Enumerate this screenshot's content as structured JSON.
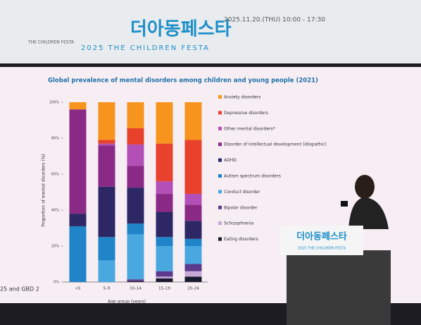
{
  "banner": {
    "title": "더아동페스타",
    "subtitle": "2025 THE CHILDREN FESTA",
    "date": "2025.11.20.(THU) 10:00 - 17:30",
    "logo": "THE CHILDREN FESTA"
  },
  "podium": {
    "title": "더아동페스타",
    "subtitle": "2025 THE CHILDREN FESTA"
  },
  "footnote": "25 and GBD 2",
  "chart_data": {
    "type": "stacked-bar",
    "title": "Global prevalence of mental disorders among children and young people (2021)",
    "x_label": "Age group (years)",
    "y_label": "Proportion of mental disorders (%)",
    "categories": [
      "<5",
      "5–9",
      "10–14",
      "15–19",
      "20–24"
    ],
    "ylim": [
      0,
      100
    ],
    "yticks": [
      {
        "value": 0,
        "label": "0%"
      },
      {
        "value": 20,
        "label": "20%"
      },
      {
        "value": 40,
        "label": "40%"
      },
      {
        "value": 60,
        "label": "60%"
      },
      {
        "value": 80,
        "label": "80%"
      },
      {
        "value": 100,
        "label": "100%"
      }
    ],
    "series": [
      {
        "name": "Anxiety disorders",
        "color": "#f7941d",
        "values": [
          4,
          21,
          14.5,
          23,
          21
        ]
      },
      {
        "name": "Depressive disorders",
        "color": "#e8412c",
        "values": [
          0,
          2,
          9,
          21,
          30
        ]
      },
      {
        "name": "Other mental disorders*",
        "color": "#b44fb8",
        "values": [
          0,
          1,
          12,
          7,
          6
        ]
      },
      {
        "name": "Disorder of intellectual development (idiopathic)",
        "color": "#8a2a86",
        "values": [
          58,
          23,
          12,
          10,
          9
        ]
      },
      {
        "name": "ADHD",
        "color": "#2d2766",
        "values": [
          7,
          28,
          20,
          14,
          10
        ]
      },
      {
        "name": "Autism spectrum disorders",
        "color": "#1f84c8",
        "values": [
          31,
          13,
          6,
          5,
          4
        ]
      },
      {
        "name": "Conduct disorder",
        "color": "#4aa8e0",
        "values": [
          0,
          12,
          25,
          14,
          10
        ]
      },
      {
        "name": "Bipolar disorder",
        "color": "#5b3a8e",
        "values": [
          0,
          0,
          1,
          3,
          4
        ]
      },
      {
        "name": "Schizophrenia",
        "color": "#c9a7d6",
        "values": [
          0,
          0,
          0,
          1,
          3
        ]
      },
      {
        "name": "Eating disorders",
        "color": "#1a1a2e",
        "values": [
          0,
          0,
          0.5,
          2,
          3
        ]
      }
    ]
  }
}
